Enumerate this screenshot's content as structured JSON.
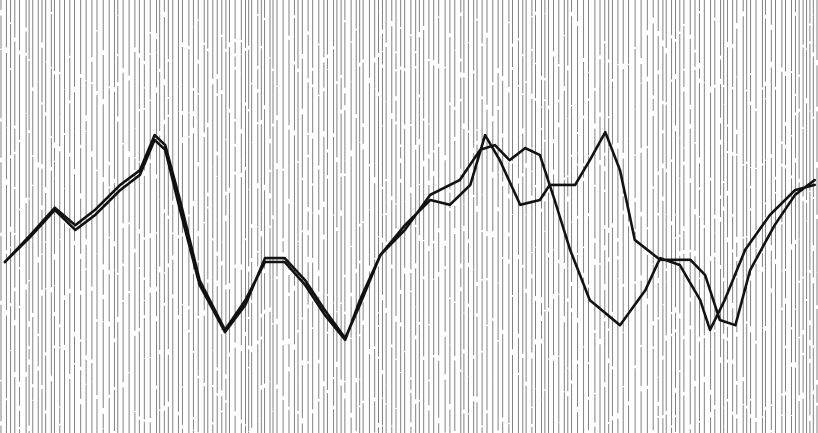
{
  "chart_data": {
    "type": "line",
    "xlim": [
      0,
      100
    ],
    "ylim": [
      0,
      100
    ],
    "series": [
      {
        "color": "#111111",
        "x": [
          0.6,
          3.7,
          6.7,
          9.2,
          11.6,
          14.7,
          17.1,
          18.9,
          20.2,
          22,
          24.4,
          27.5,
          30,
          32.4,
          34.8,
          37.3,
          39.7,
          42.2,
          44,
          46.5,
          49.5,
          52.6,
          55,
          57.5,
          59.3,
          61.1,
          63.6,
          66,
          67.2,
          70.3,
          72.1,
          74,
          75.8,
          77.6,
          80.7,
          84.4,
          86.2,
          88,
          89.9,
          91.7,
          94.7,
          97.2,
          99.6
        ],
        "values": [
          39.5,
          45.7,
          52,
          48,
          51.5,
          57.3,
          60.7,
          68.8,
          66.5,
          53.8,
          35.3,
          23.8,
          30.7,
          39.5,
          39.5,
          34.2,
          27.3,
          21.5,
          30.7,
          41.1,
          48,
          53.8,
          52.7,
          57.3,
          68.8,
          63,
          52.7,
          53.8,
          57.3,
          57.3,
          63,
          69.5,
          60.7,
          44.6,
          40,
          40,
          36.5,
          26.1,
          24.9,
          37.6,
          48,
          55,
          58.4
        ]
      },
      {
        "color": "#111111",
        "x": [
          0.6,
          3.7,
          6.7,
          9.2,
          11.6,
          14.7,
          17.1,
          18.9,
          20.2,
          22,
          24.4,
          27.5,
          30,
          32.4,
          34.8,
          37.3,
          39.7,
          42.2,
          44,
          46.5,
          49.5,
          52.6,
          56.2,
          58.7,
          60.5,
          62.3,
          64.2,
          66,
          67.8,
          69.7,
          72.1,
          75.8,
          78.9,
          80.7,
          83.1,
          85.6,
          86.8,
          88.6,
          91.1,
          94.1,
          97.2,
          99.6
        ],
        "values": [
          39.5,
          45.3,
          51.5,
          46.9,
          50.3,
          56.1,
          59.6,
          67.7,
          65.4,
          51.5,
          34.2,
          23.3,
          29.6,
          40.4,
          40.4,
          35.3,
          28.4,
          21.9,
          29.6,
          41.1,
          46.9,
          55,
          58.4,
          65.4,
          66.5,
          63,
          65.8,
          64.2,
          53.8,
          42.3,
          30.7,
          24.9,
          33,
          40.4,
          38.8,
          30.7,
          23.8,
          30.7,
          42.3,
          50.3,
          56.1,
          57.3
        ]
      }
    ]
  }
}
